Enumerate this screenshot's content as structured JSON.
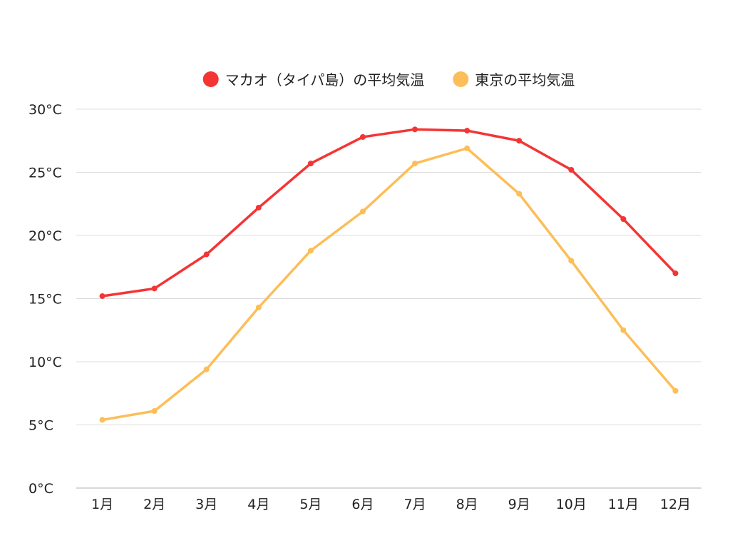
{
  "chart_data": {
    "type": "line",
    "title": "",
    "xlabel": "",
    "ylabel": "",
    "categories": [
      "1月",
      "2月",
      "3月",
      "4月",
      "5月",
      "6月",
      "7月",
      "8月",
      "9月",
      "10月",
      "11月",
      "12月"
    ],
    "ylim": [
      0,
      30
    ],
    "yticks": [
      0,
      5,
      10,
      15,
      20,
      25,
      30
    ],
    "ytick_suffix": "°C",
    "grid": true,
    "legend_position": "top-center",
    "series": [
      {
        "name": "マカオ（タイパ島）の平均気温",
        "color": "#f53434",
        "values": [
          15.2,
          15.8,
          18.5,
          22.2,
          25.7,
          27.8,
          28.4,
          28.3,
          27.5,
          25.2,
          21.3,
          17.0
        ]
      },
      {
        "name": "東京の平均気温",
        "color": "#fcbe58",
        "values": [
          5.4,
          6.1,
          9.4,
          14.3,
          18.8,
          21.9,
          25.7,
          26.9,
          23.3,
          18.0,
          12.5,
          7.7
        ]
      }
    ]
  }
}
